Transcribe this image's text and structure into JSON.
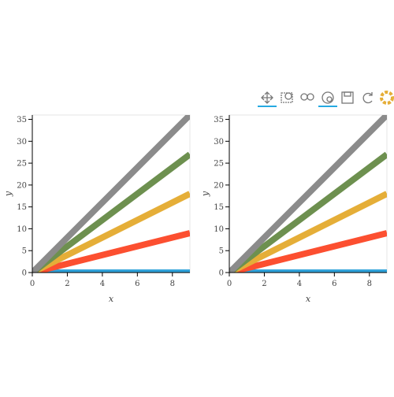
{
  "chart_data": [
    {
      "type": "line",
      "xlabel": "x",
      "ylabel": "y",
      "x": [
        0,
        9
      ],
      "series": [
        {
          "color": "#30a2da",
          "values": [
            0,
            0
          ]
        },
        {
          "color": "#fc4f30",
          "values": [
            0,
            9
          ]
        },
        {
          "color": "#e5ae38",
          "values": [
            0,
            18
          ]
        },
        {
          "color": "#6d904f",
          "values": [
            0,
            27
          ]
        },
        {
          "color": "#8b8b8b",
          "values": [
            0,
            36
          ]
        }
      ],
      "xlim": [
        0,
        9
      ],
      "ylim": [
        0,
        36
      ],
      "xticks": [
        0,
        2,
        4,
        6,
        8
      ],
      "yticks": [
        0,
        5,
        10,
        15,
        20,
        25,
        30,
        35
      ]
    },
    {
      "type": "line",
      "xlabel": "x",
      "ylabel": "y",
      "x": [
        0,
        9
      ],
      "series": [
        {
          "color": "#30a2da",
          "values": [
            0,
            0
          ]
        },
        {
          "color": "#fc4f30",
          "values": [
            0,
            9
          ]
        },
        {
          "color": "#e5ae38",
          "values": [
            0,
            18
          ]
        },
        {
          "color": "#6d904f",
          "values": [
            0,
            27
          ]
        },
        {
          "color": "#8b8b8b",
          "values": [
            0,
            36
          ]
        }
      ],
      "xlim": [
        0,
        9
      ],
      "ylim": [
        0,
        36
      ],
      "xticks": [
        0,
        2,
        4,
        6,
        8
      ],
      "yticks": [
        0,
        5,
        10,
        15,
        20,
        25,
        30,
        35
      ]
    }
  ]
}
